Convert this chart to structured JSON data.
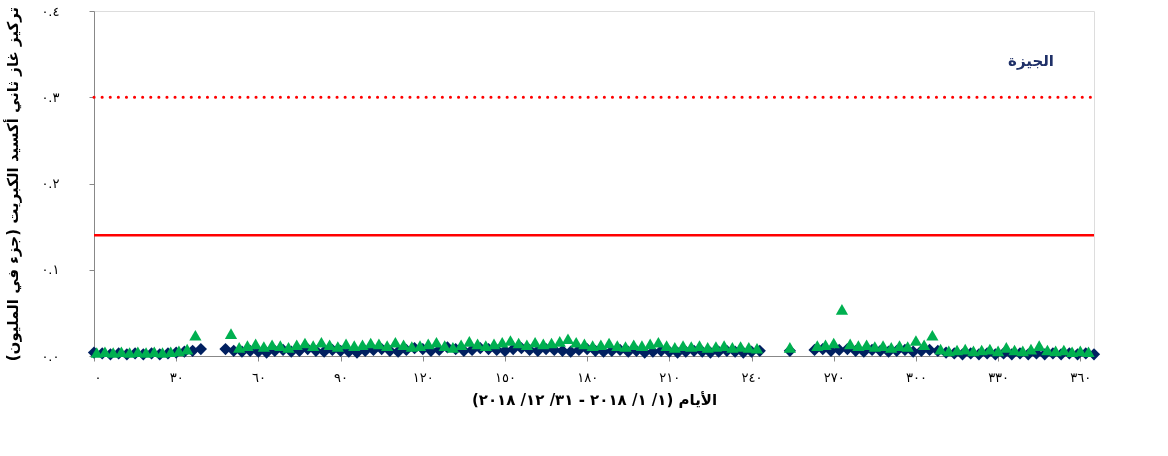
{
  "chart_data": {
    "type": "scatter",
    "annotations": [
      "الجيزة"
    ],
    "xlabel": "الأيام (١/ ١/ ٢٠١٨ - ٣١/ ١٢/ ٢٠١٨)",
    "ylabel": "تركيز غاز ثاني أكسيد الكبريت (جزء في المليون)",
    "xlim": [
      0,
      365
    ],
    "ylim": [
      0,
      0.4
    ],
    "xticks": [
      {
        "value": 0,
        "label": "٠"
      },
      {
        "value": 30,
        "label": "٣٠"
      },
      {
        "value": 60,
        "label": "٦٠"
      },
      {
        "value": 90,
        "label": "٩٠"
      },
      {
        "value": 120,
        "label": "١٢٠"
      },
      {
        "value": 150,
        "label": "١٥٠"
      },
      {
        "value": 180,
        "label": "١٨٠"
      },
      {
        "value": 210,
        "label": "٢١٠"
      },
      {
        "value": 240,
        "label": "٢٤٠"
      },
      {
        "value": 270,
        "label": "٢٧٠"
      },
      {
        "value": 300,
        "label": "٣٠٠"
      },
      {
        "value": 330,
        "label": "٣٣٠"
      },
      {
        "value": 360,
        "label": "٣٦٠"
      }
    ],
    "yticks": [
      {
        "value": 0,
        "label": "٠.٠"
      },
      {
        "value": 0.1,
        "label": "٠.١"
      },
      {
        "value": 0.2,
        "label": "٠.٢"
      },
      {
        "value": 0.3,
        "label": "٠.٣"
      },
      {
        "value": 0.4,
        "label": "٠.٤"
      }
    ],
    "grid": false,
    "legend": false,
    "ref_lines": [
      {
        "axis": "y",
        "value": 0.14,
        "color": "#ff0000",
        "line_style": "solid"
      },
      {
        "axis": "y",
        "value": 0.3,
        "color": "#ff0000",
        "line_style": "dotted"
      }
    ],
    "series": [
      {
        "color": "#002060",
        "marker": "diamond",
        "x": [
          0,
          3,
          6,
          9,
          12,
          15,
          18,
          21,
          24,
          27,
          30,
          33,
          36,
          39,
          48,
          51,
          54,
          57,
          60,
          63,
          66,
          69,
          72,
          75,
          78,
          81,
          84,
          87,
          90,
          93,
          96,
          99,
          102,
          105,
          108,
          111,
          114,
          117,
          120,
          123,
          126,
          129,
          132,
          135,
          138,
          141,
          144,
          147,
          150,
          153,
          156,
          159,
          162,
          165,
          168,
          171,
          174,
          177,
          180,
          183,
          186,
          189,
          192,
          195,
          198,
          201,
          204,
          207,
          210,
          213,
          216,
          219,
          222,
          225,
          228,
          231,
          234,
          237,
          240,
          243,
          254,
          263,
          266,
          269,
          272,
          275,
          278,
          281,
          284,
          287,
          290,
          293,
          296,
          299,
          302,
          305,
          308,
          311,
          314,
          317,
          320,
          323,
          326,
          329,
          332,
          335,
          338,
          341,
          344,
          347,
          350,
          353,
          356,
          359,
          362,
          365
        ],
        "values": [
          0.004,
          0.003,
          0.002,
          0.003,
          0.002,
          0.003,
          0.002,
          0.003,
          0.002,
          0.003,
          0.004,
          0.005,
          0.006,
          0.008,
          0.008,
          0.006,
          0.005,
          0.006,
          0.005,
          0.004,
          0.006,
          0.007,
          0.005,
          0.006,
          0.008,
          0.006,
          0.005,
          0.007,
          0.006,
          0.005,
          0.004,
          0.006,
          0.007,
          0.008,
          0.006,
          0.005,
          0.007,
          0.009,
          0.008,
          0.006,
          0.007,
          0.01,
          0.008,
          0.006,
          0.007,
          0.009,
          0.008,
          0.007,
          0.006,
          0.008,
          0.009,
          0.007,
          0.006,
          0.008,
          0.007,
          0.006,
          0.005,
          0.007,
          0.008,
          0.006,
          0.005,
          0.006,
          0.007,
          0.005,
          0.006,
          0.004,
          0.005,
          0.006,
          0.005,
          0.004,
          0.005,
          0.006,
          0.005,
          0.004,
          0.005,
          0.006,
          0.005,
          0.004,
          0.005,
          0.006,
          0.006,
          0.007,
          0.008,
          0.006,
          0.007,
          0.008,
          0.006,
          0.005,
          0.007,
          0.006,
          0.005,
          0.006,
          0.007,
          0.005,
          0.006,
          0.007,
          0.006,
          0.004,
          0.003,
          0.002,
          0.003,
          0.002,
          0.003,
          0.002,
          0.003,
          0.002,
          0.003,
          0.002,
          0.003,
          0.002,
          0.003,
          0.002,
          0.003,
          0.002,
          0.003,
          0.002
        ]
      },
      {
        "color": "#00b050",
        "marker": "triangle",
        "x": [
          1,
          4,
          7,
          10,
          13,
          16,
          19,
          22,
          25,
          28,
          31,
          34,
          37,
          50,
          53,
          56,
          59,
          62,
          65,
          68,
          71,
          74,
          77,
          80,
          83,
          86,
          89,
          92,
          95,
          98,
          101,
          104,
          107,
          110,
          113,
          116,
          119,
          122,
          125,
          128,
          131,
          134,
          137,
          140,
          143,
          146,
          149,
          152,
          155,
          158,
          161,
          164,
          167,
          170,
          173,
          176,
          179,
          182,
          185,
          188,
          191,
          194,
          197,
          200,
          203,
          206,
          209,
          212,
          215,
          218,
          221,
          224,
          227,
          230,
          233,
          236,
          239,
          242,
          254,
          264,
          267,
          270,
          273,
          276,
          279,
          282,
          285,
          288,
          291,
          294,
          297,
          300,
          303,
          306,
          309,
          312,
          315,
          318,
          321,
          324,
          327,
          330,
          333,
          336,
          339,
          342,
          345,
          348,
          351,
          354,
          357,
          360,
          363
        ],
        "values": [
          0.004,
          0.005,
          0.004,
          0.005,
          0.004,
          0.005,
          0.004,
          0.005,
          0.004,
          0.005,
          0.006,
          0.008,
          0.024,
          0.026,
          0.01,
          0.012,
          0.014,
          0.011,
          0.013,
          0.012,
          0.01,
          0.013,
          0.015,
          0.012,
          0.016,
          0.013,
          0.011,
          0.014,
          0.012,
          0.013,
          0.015,
          0.014,
          0.012,
          0.016,
          0.013,
          0.011,
          0.012,
          0.014,
          0.016,
          0.012,
          0.01,
          0.013,
          0.017,
          0.014,
          0.012,
          0.014,
          0.016,
          0.018,
          0.015,
          0.013,
          0.016,
          0.014,
          0.015,
          0.017,
          0.02,
          0.016,
          0.014,
          0.012,
          0.013,
          0.015,
          0.012,
          0.011,
          0.013,
          0.012,
          0.014,
          0.016,
          0.012,
          0.01,
          0.012,
          0.011,
          0.012,
          0.01,
          0.011,
          0.012,
          0.01,
          0.011,
          0.01,
          0.009,
          0.01,
          0.012,
          0.013,
          0.015,
          0.054,
          0.014,
          0.012,
          0.013,
          0.011,
          0.012,
          0.01,
          0.012,
          0.011,
          0.018,
          0.013,
          0.024,
          0.008,
          0.006,
          0.007,
          0.008,
          0.006,
          0.007,
          0.008,
          0.006,
          0.01,
          0.007,
          0.006,
          0.008,
          0.012,
          0.007,
          0.006,
          0.007,
          0.005,
          0.006,
          0.005
        ]
      }
    ]
  }
}
